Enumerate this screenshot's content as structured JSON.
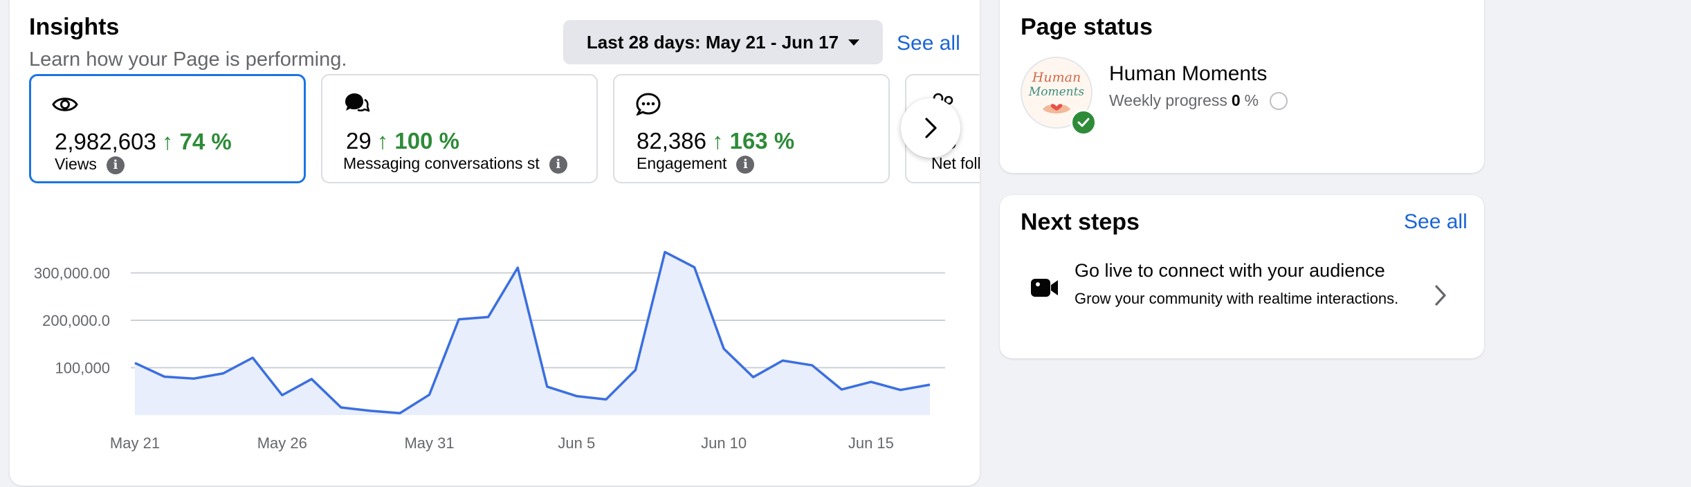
{
  "insights": {
    "title": "Insights",
    "subtitle": "Learn how your Page is performing.",
    "date_range": "Last 28 days: May 21 - Jun 17",
    "see_all": "See all",
    "metrics": [
      {
        "icon": "eye-icon",
        "value": "2,982,603",
        "change": "↑ 74 %",
        "label": "Views",
        "selected": true
      },
      {
        "icon": "messaging-icon",
        "value": "29",
        "change": "↑ 100 %",
        "label": "Messaging conversations st"
      },
      {
        "icon": "chat-bubble-icon",
        "value": "82,386",
        "change": "↑ 163 %",
        "label": "Engagement"
      },
      {
        "icon": "followers-icon",
        "value": "58",
        "label": "Net foll"
      }
    ]
  },
  "chart_data": {
    "type": "area",
    "x": [
      "May 21",
      "May 22",
      "May 23",
      "May 24",
      "May 25",
      "May 26",
      "May 27",
      "May 28",
      "May 29",
      "May 30",
      "May 31",
      "Jun 1",
      "Jun 2",
      "Jun 3",
      "Jun 4",
      "Jun 5",
      "Jun 6",
      "Jun 7",
      "Jun 8",
      "Jun 9",
      "Jun 10",
      "Jun 11",
      "Jun 12",
      "Jun 13",
      "Jun 14",
      "Jun 15",
      "Jun 16",
      "Jun 17"
    ],
    "series": [
      {
        "values": [
          110000,
          81000,
          77000,
          88000,
          121000,
          42000,
          76000,
          16000,
          9000,
          4000,
          43000,
          202000,
          207000,
          311000,
          60000,
          40000,
          33000,
          95000,
          344000,
          312000,
          140000,
          80000,
          115000,
          105000,
          54000,
          70000,
          53000,
          64000
        ]
      }
    ],
    "y_ticks": [
      "100,000",
      "200,000.0",
      "300,000.00"
    ],
    "x_ticks": [
      "May 21",
      "May 26",
      "May 31",
      "Jun 5",
      "Jun 10",
      "Jun 15"
    ],
    "ylim": [
      0,
      400000
    ],
    "grid": true,
    "colors": {
      "line": "#3b6fe0",
      "fill": "#e8eefb"
    }
  },
  "page_status": {
    "title": "Page status",
    "page_name": "Human Moments",
    "progress_label": "Weekly progress",
    "progress_value": "0",
    "progress_unit": "%",
    "logo_text": "Human Moments"
  },
  "next_steps": {
    "title": "Next steps",
    "see_all": "See all",
    "items": [
      {
        "icon": "video-camera-icon",
        "title": "Go live to connect with your audience",
        "description": "Grow your community with realtime interactions."
      }
    ]
  },
  "colors": {
    "accent": "#1b74e4",
    "link": "#1b66d6",
    "positive": "#2e8b38",
    "background": "#f0f2f5"
  }
}
